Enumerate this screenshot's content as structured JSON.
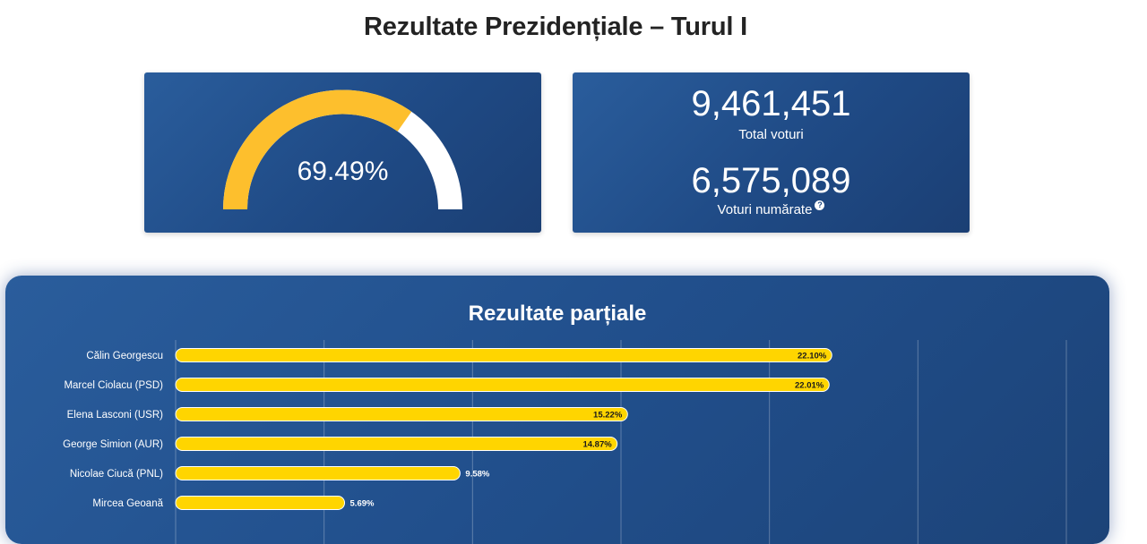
{
  "page": {
    "title": "Rezultate Prezidențiale – Turul I"
  },
  "turnout_card": {
    "percent_text": "69.49%",
    "percent_value": 69.49,
    "colors": {
      "filled": "#fdbf2d",
      "remaining": "#ffffff"
    }
  },
  "stats_card": {
    "total_votes": "9,461,451",
    "total_votes_label": "Total voturi",
    "counted_votes": "6,575,089",
    "counted_votes_label": "Voturi numărate",
    "help_icon": "?"
  },
  "results": {
    "title": "Rezultate parțiale",
    "bar_color": "#ffd500"
  },
  "chart_data": {
    "type": "bar",
    "orientation": "horizontal",
    "title": "Rezultate parțiale",
    "categories": [
      "Călin Georgescu",
      "Marcel Ciolacu (PSD)",
      "Elena Lasconi (USR)",
      "George Simion (AUR)",
      "Nicolae Ciucă (PNL)",
      "Mircea Geoană"
    ],
    "values": [
      22.1,
      22.01,
      15.22,
      14.87,
      9.58,
      5.69
    ],
    "value_labels": [
      "22.10%",
      "22.01%",
      "15.22%",
      "14.87%",
      "9.58%",
      "5.69%"
    ],
    "xlim": [
      0,
      30
    ],
    "grid": true
  }
}
